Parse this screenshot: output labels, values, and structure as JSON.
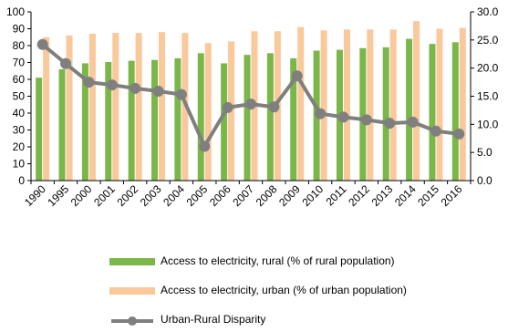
{
  "chart_data": {
    "type": "bar",
    "categories": [
      "1990",
      "1995",
      "2000",
      "2001",
      "2002",
      "2003",
      "2004",
      "2005",
      "2006",
      "2007",
      "2008",
      "2009",
      "2010",
      "2011",
      "2012",
      "2013",
      "2014",
      "2015",
      "2016"
    ],
    "series": [
      {
        "name": "Access to electricity, rural (% of rural population)",
        "type": "bar",
        "axis": "left",
        "color": "#7ab648",
        "values": [
          61,
          66,
          69.5,
          70.3,
          71,
          71.5,
          72.5,
          75.5,
          69.5,
          74.5,
          75.5,
          72.5,
          77,
          77.5,
          78.5,
          79,
          84,
          81,
          82
        ]
      },
      {
        "name": "Access to electricity, urban (% of urban population)",
        "type": "bar",
        "axis": "left",
        "color": "#f9c89b",
        "values": [
          85,
          86,
          87,
          87.5,
          87.5,
          88,
          87.5,
          81.5,
          82.5,
          88.5,
          88.5,
          91,
          89,
          89.5,
          89.5,
          89.5,
          94.5,
          90,
          90.5
        ]
      },
      {
        "name": "Urban-Rural Disparity",
        "type": "line",
        "axis": "right",
        "color": "#7f7f7f",
        "values": [
          24.2,
          20.8,
          17.5,
          17.0,
          16.4,
          15.9,
          15.3,
          6.1,
          13.0,
          13.6,
          13.1,
          18.6,
          11.9,
          11.3,
          10.8,
          10.2,
          10.4,
          8.8,
          8.3
        ]
      }
    ],
    "ylim": [
      0,
      100
    ],
    "y_ticks": [
      "0",
      "10",
      "20",
      "30",
      "40",
      "50",
      "60",
      "70",
      "80",
      "90",
      "100"
    ],
    "y2lim": [
      0,
      30
    ],
    "y2_ticks": [
      "0.0",
      "5.0",
      "10.0",
      "15.0",
      "20.0",
      "25.0",
      "30.0"
    ],
    "grid": false,
    "legend_position": "bottom"
  }
}
